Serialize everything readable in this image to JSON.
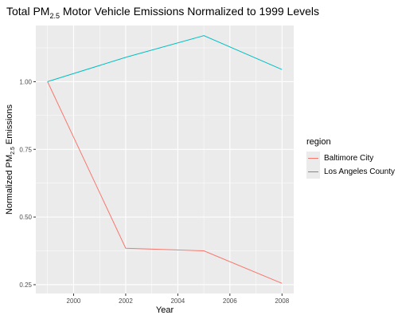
{
  "title": {
    "prefix": "Total PM",
    "subscript": "2.5",
    "suffix": " Motor Vehicle Emissions Normalized to 1999 Levels"
  },
  "ylabel": {
    "prefix": "Normalized PM",
    "subscript": "2.5",
    "suffix": " Emissions"
  },
  "legend": {
    "title": "region",
    "items": [
      {
        "label": "Baltimore City",
        "color": "#F8766D"
      },
      {
        "label": "Los Angeles County",
        "color": "#00BFC4"
      }
    ]
  },
  "chart_data": {
    "type": "line",
    "title": "Total PM2.5 Motor Vehicle Emissions Normalized to 1999 Levels",
    "xlabel": "Year",
    "ylabel": "Normalized PM2.5 Emissions",
    "x": [
      1999,
      2002,
      2005,
      2008
    ],
    "series": [
      {
        "name": "Baltimore City",
        "color": "#F8766D",
        "values": [
          1.0,
          0.385,
          0.375,
          0.255
        ]
      },
      {
        "name": "Los Angeles County",
        "color": "#00BFC4",
        "values": [
          1.0,
          1.09,
          1.17,
          1.045
        ]
      }
    ],
    "xlim": [
      1998.55,
      2008.45
    ],
    "ylim": [
      0.2175,
      1.2075
    ],
    "xticks": [
      2000,
      2002,
      2004,
      2006,
      2008
    ],
    "yticks": [
      0.25,
      0.5,
      0.75,
      1.0
    ],
    "ytick_labels": [
      "0.25",
      "0.50",
      "0.75",
      "1.00"
    ],
    "grid": true,
    "legend_position": "right"
  }
}
